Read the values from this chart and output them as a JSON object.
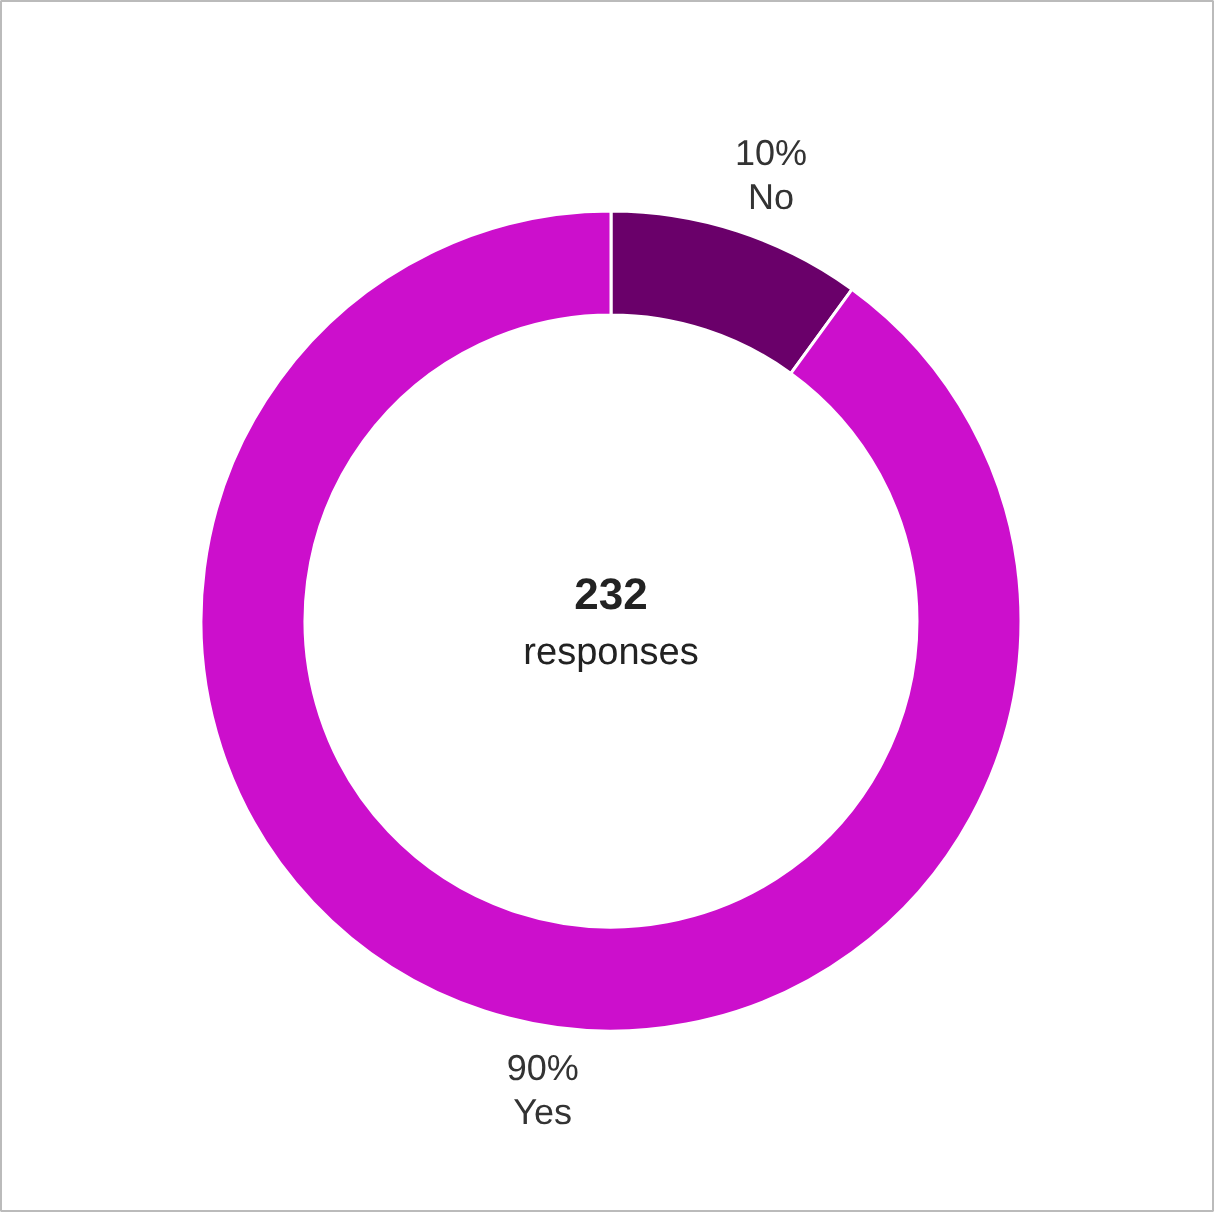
{
  "chart_data": {
    "type": "donut",
    "categories": [
      "No",
      "Yes"
    ],
    "values": [
      10,
      90
    ],
    "colors": [
      "#6a006a",
      "#cc0fcc"
    ],
    "value_labels": [
      "10%",
      "90%"
    ],
    "annotations": [
      "232",
      "responses"
    ]
  }
}
